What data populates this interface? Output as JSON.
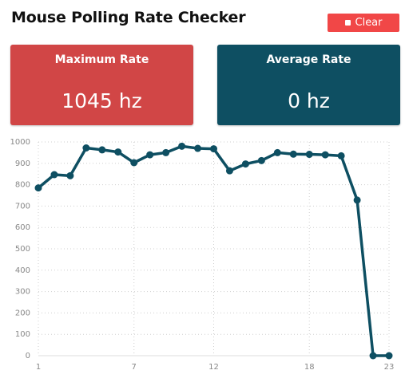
{
  "app": {
    "title": "Mouse Polling Rate Checker"
  },
  "toolbar": {
    "clear_label": "Clear",
    "clear_icon": "stop-icon"
  },
  "cards": {
    "max": {
      "label": "Maximum Rate",
      "value": "1045 hz",
      "color": "#d14646"
    },
    "avg": {
      "label": "Average Rate",
      "value": "0 hz",
      "color": "#0e4f62"
    }
  },
  "colors": {
    "accent": "#f14747",
    "line": "#0e4f62"
  },
  "chart_data": {
    "type": "line",
    "title": "",
    "xlabel": "",
    "ylabel": "",
    "x": [
      1,
      2,
      3,
      4,
      5,
      6,
      7,
      8,
      9,
      10,
      11,
      12,
      13,
      14,
      15,
      16,
      17,
      18,
      19,
      20,
      21,
      22,
      23
    ],
    "x_ticks": [
      1,
      7,
      12,
      18,
      23
    ],
    "ylim": [
      0,
      1000
    ],
    "y_ticks": [
      0,
      100,
      200,
      300,
      400,
      500,
      600,
      700,
      800,
      900,
      1000
    ],
    "grid": true,
    "series": [
      {
        "values": [
          785,
          847,
          842,
          972,
          963,
          953,
          903,
          940,
          950,
          980,
          970,
          968,
          865,
          897,
          913,
          950,
          943,
          942,
          940,
          935,
          728,
          0,
          0
        ]
      }
    ]
  }
}
